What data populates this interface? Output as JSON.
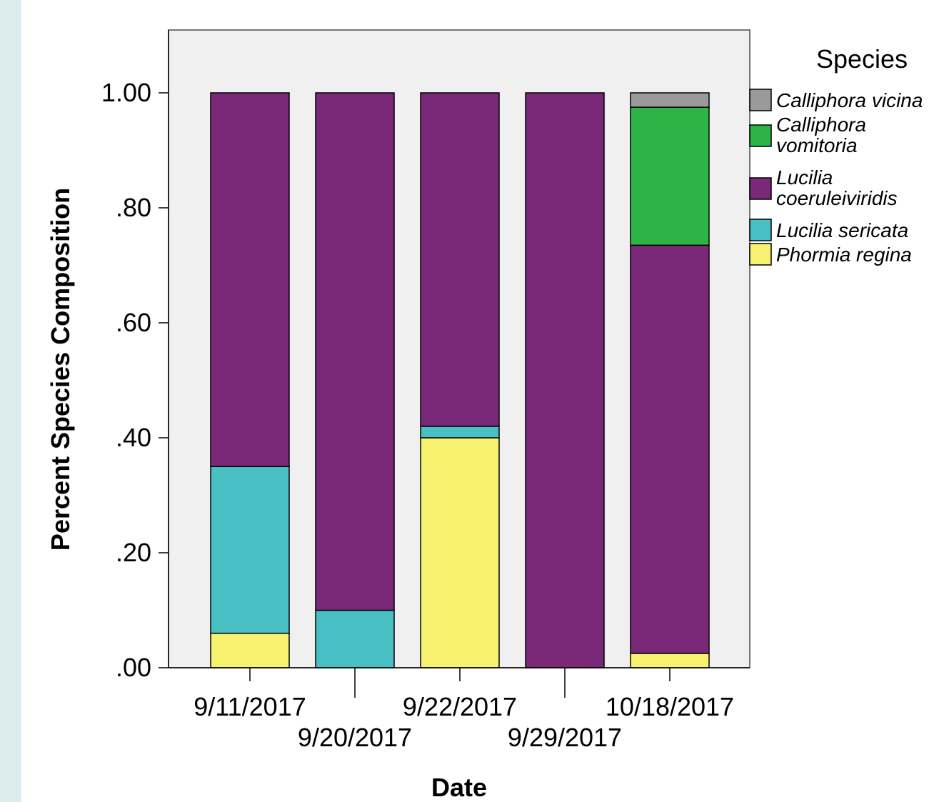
{
  "chart_data": {
    "type": "bar",
    "stacked": true,
    "xlabel": "Date",
    "ylabel": "Percent Species Composition",
    "ylim": [
      0,
      1.0
    ],
    "yticks": [
      ".00",
      ".20",
      ".40",
      ".60",
      ".80",
      "1.00"
    ],
    "categories": [
      "9/11/2017",
      "9/20/2017",
      "9/22/2017",
      "9/29/2017",
      "10/18/2017"
    ],
    "legend_title": "Species",
    "legend_position": "right",
    "series": [
      {
        "name": "Phormia regina",
        "legend_lines": [
          "Phormia regina"
        ],
        "color": "#f6f16e",
        "values": [
          0.06,
          0.0,
          0.4,
          0.0,
          0.025
        ]
      },
      {
        "name": "Lucilia sericata",
        "legend_lines": [
          "Lucilia sericata"
        ],
        "color": "#47bfc3",
        "values": [
          0.29,
          0.1,
          0.02,
          0.0,
          0.0
        ]
      },
      {
        "name": "Lucilia coeruleiviridis",
        "legend_lines": [
          "Lucilia",
          "coeruleiviridis"
        ],
        "color": "#7a2878",
        "values": [
          0.65,
          0.9,
          0.58,
          1.0,
          0.71
        ]
      },
      {
        "name": "Calliphora vomitoria",
        "legend_lines": [
          "Calliphora",
          "vomitoria"
        ],
        "color": "#2db447",
        "values": [
          0.0,
          0.0,
          0.0,
          0.0,
          0.24
        ]
      },
      {
        "name": "Calliphora vicina",
        "legend_lines": [
          "Calliphora vicina"
        ],
        "color": "#9a9a9a",
        "values": [
          0.0,
          0.0,
          0.0,
          0.0,
          0.025
        ]
      }
    ]
  }
}
